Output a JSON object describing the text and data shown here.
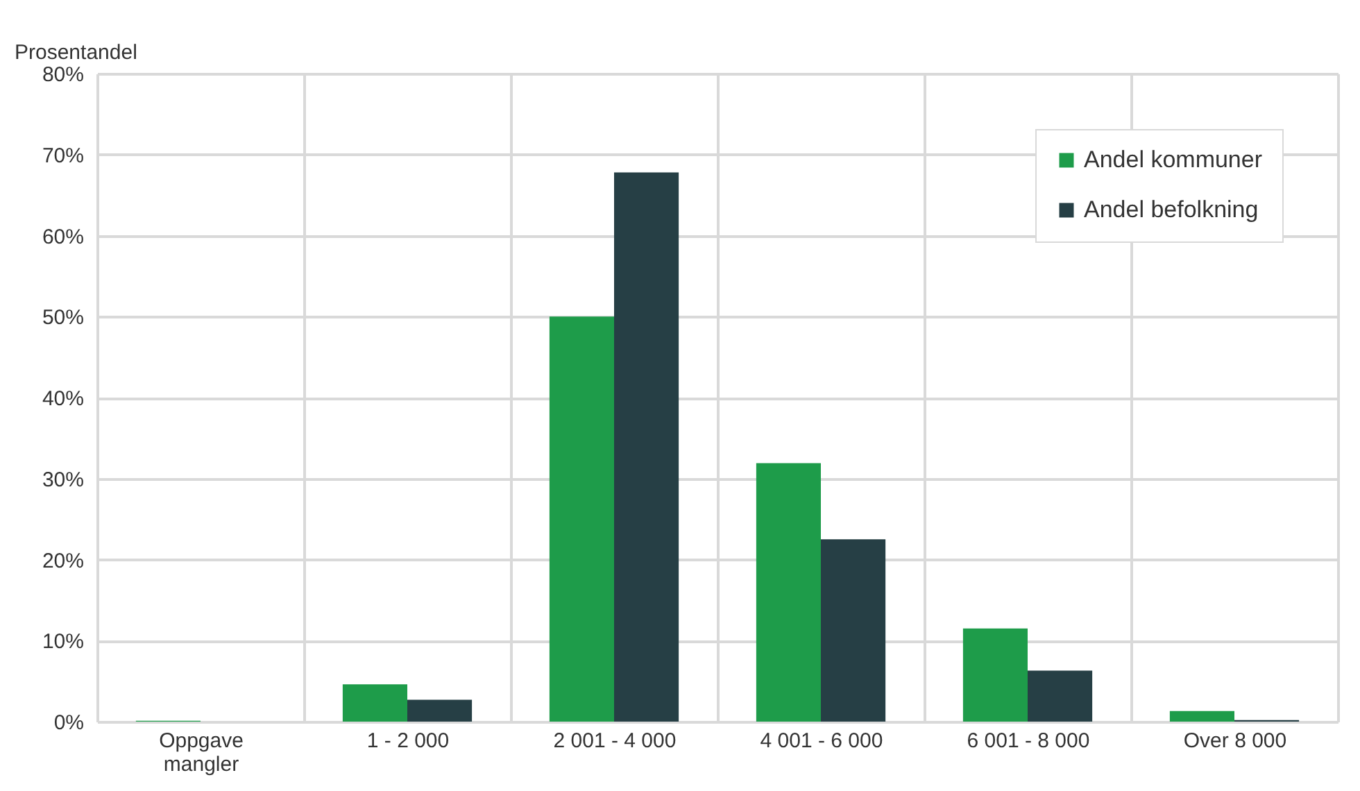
{
  "chart_data": {
    "type": "bar",
    "ylabel": "Prosentandel",
    "categories": [
      "Oppgave mangler",
      "1 - 2 000",
      "2 001 - 4 000",
      "4 001 - 6 000",
      "6 001 - 8 000",
      "Over 8 000"
    ],
    "series": [
      {
        "name": "Andel kommuner",
        "color": "#1e9c4a",
        "values": [
          0.1,
          4.6,
          50,
          31.9,
          11.5,
          1.3
        ]
      },
      {
        "name": "Andel befolkning",
        "color": "#263f45",
        "values": [
          0,
          2.7,
          67.8,
          22.5,
          6.3,
          0.2
        ]
      }
    ],
    "ylim": [
      0,
      80
    ],
    "yticks": [
      {
        "value": 0,
        "label": "0%"
      },
      {
        "value": 10,
        "label": "10%"
      },
      {
        "value": 20,
        "label": "20%"
      },
      {
        "value": 30,
        "label": "30%"
      },
      {
        "value": 40,
        "label": "40%"
      },
      {
        "value": 50,
        "label": "50%"
      },
      {
        "value": 60,
        "label": "60%"
      },
      {
        "value": 70,
        "label": "70%"
      },
      {
        "value": 80,
        "label": "80%"
      }
    ],
    "grid": true,
    "legend": "top right"
  }
}
